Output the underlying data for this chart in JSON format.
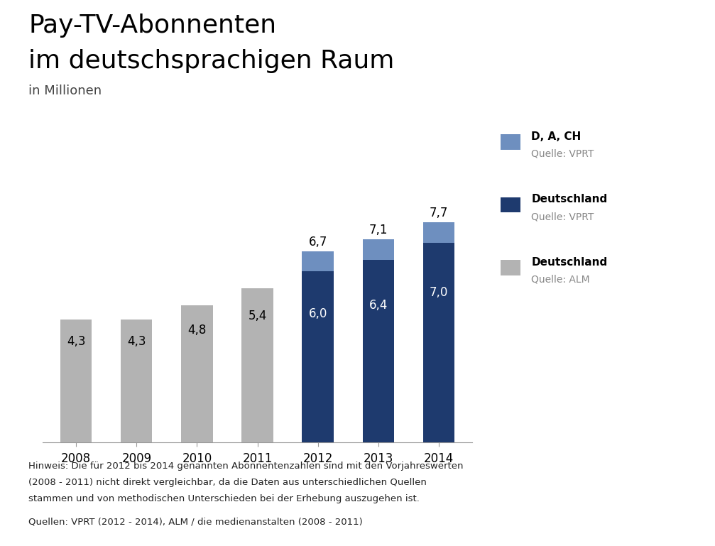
{
  "title_line1": "Pay-TV-Abonnenten",
  "title_line2": "im deutschsprachigen Raum",
  "subtitle": "in Millionen",
  "years": [
    "2008",
    "2009",
    "2010",
    "2011",
    "2012",
    "2013",
    "2014"
  ],
  "alm_values": [
    4.3,
    4.3,
    4.8,
    5.4,
    0,
    0,
    0
  ],
  "vprt_de_values": [
    0,
    0,
    0,
    0,
    6.0,
    6.4,
    7.0
  ],
  "vprt_dach_extra": [
    0,
    0,
    0,
    0,
    0.7,
    0.7,
    0.7
  ],
  "bar_labels_alm_inside": [
    "4,3",
    "4,3",
    "4,8",
    "5,4",
    "",
    "",
    ""
  ],
  "bar_labels_vprt_de_inside": [
    "",
    "",
    "",
    "",
    "6,0",
    "6,4",
    "7,0"
  ],
  "bar_labels_top": [
    "",
    "",
    "",
    "",
    "6,7",
    "7,1",
    "7,7"
  ],
  "color_alm": "#b3b3b3",
  "color_vprt_de": "#1e3a6e",
  "color_vprt_dach": "#6e8fbf",
  "background_color": "#ffffff",
  "ylim": [
    0,
    8.8
  ],
  "legend_labels_main": [
    "D, A, CH",
    "Deutschland",
    "Deutschland"
  ],
  "legend_labels_sub": [
    "Quelle: VPRT",
    "Quelle: VPRT",
    "Quelle: ALM"
  ],
  "legend_colors": [
    "#6e8fbf",
    "#1e3a6e",
    "#b3b3b3"
  ],
  "footnote1": "Hinweis: Die für 2012 bis 2014 genannten Abonnentenzahlen sind mit den Vorjahreswerten",
  "footnote2": "(2008 - 2011) nicht direkt vergleichbar, da die Daten aus unterschiedlichen Quellen",
  "footnote3": "stammen und von methodischen Unterschieden bei der Erhebung auszugehen ist.",
  "footnote4": "Quellen: VPRT (2012 - 2014), ALM / die medienanstalten (2008 - 2011)"
}
